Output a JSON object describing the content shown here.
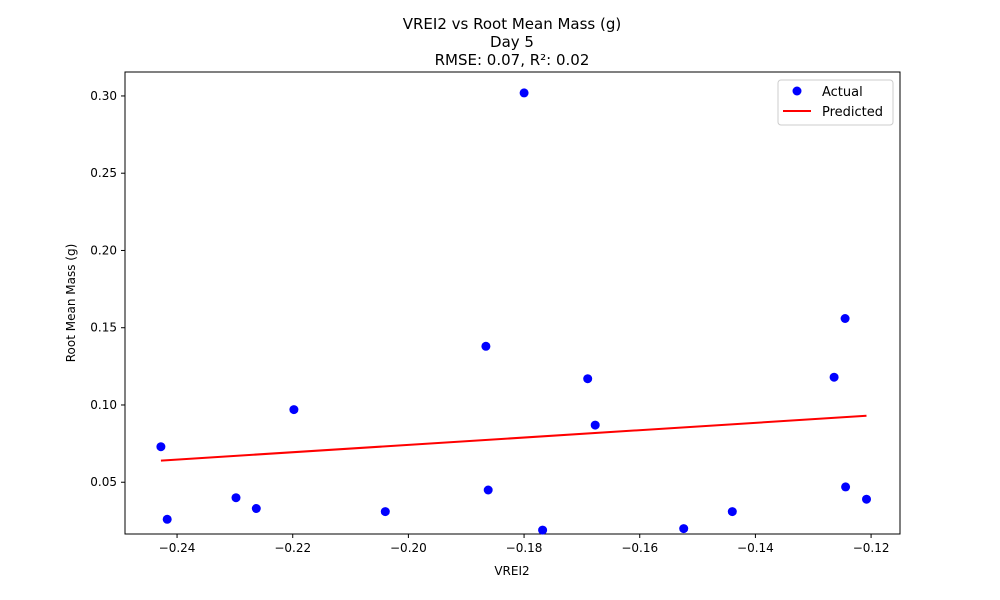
{
  "chart_data": {
    "type": "scatter",
    "title_lines": [
      "VREI2 vs Root Mean Mass (g)",
      "Day 5",
      "RMSE: 0.07, R²: 0.02"
    ],
    "xlabel": "VREI2",
    "ylabel": "Root Mean Mass (g)",
    "xlim": [
      -0.249,
      -0.115
    ],
    "ylim": [
      0.0165,
      0.3155
    ],
    "xticks": [
      -0.24,
      -0.22,
      -0.2,
      -0.18,
      -0.16,
      -0.14,
      -0.12
    ],
    "xtick_labels": [
      "−0.24",
      "−0.22",
      "−0.20",
      "−0.18",
      "−0.16",
      "−0.14",
      "−0.12"
    ],
    "yticks": [
      0.05,
      0.1,
      0.15,
      0.2,
      0.25,
      0.3
    ],
    "ytick_labels": [
      "0.05",
      "0.10",
      "0.15",
      "0.20",
      "0.25",
      "0.30"
    ],
    "legend_position": "top-right",
    "series": [
      {
        "name": "Actual",
        "kind": "scatter",
        "color": "#0000ff",
        "points": [
          {
            "x": -0.2428,
            "y": 0.073
          },
          {
            "x": -0.2417,
            "y": 0.026
          },
          {
            "x": -0.2298,
            "y": 0.04
          },
          {
            "x": -0.2263,
            "y": 0.033
          },
          {
            "x": -0.2198,
            "y": 0.097
          },
          {
            "x": -0.204,
            "y": 0.031
          },
          {
            "x": -0.1866,
            "y": 0.138
          },
          {
            "x": -0.1862,
            "y": 0.045
          },
          {
            "x": -0.18,
            "y": 0.302
          },
          {
            "x": -0.1768,
            "y": 0.019
          },
          {
            "x": -0.169,
            "y": 0.117
          },
          {
            "x": -0.1677,
            "y": 0.087
          },
          {
            "x": -0.1524,
            "y": 0.02
          },
          {
            "x": -0.144,
            "y": 0.031
          },
          {
            "x": -0.1264,
            "y": 0.118
          },
          {
            "x": -0.1245,
            "y": 0.156
          },
          {
            "x": -0.1244,
            "y": 0.047
          },
          {
            "x": -0.1208,
            "y": 0.039
          }
        ]
      },
      {
        "name": "Predicted",
        "kind": "line",
        "color": "#ff0000",
        "points": [
          {
            "x": -0.2428,
            "y": 0.064
          },
          {
            "x": -0.1208,
            "y": 0.093
          }
        ]
      }
    ]
  }
}
